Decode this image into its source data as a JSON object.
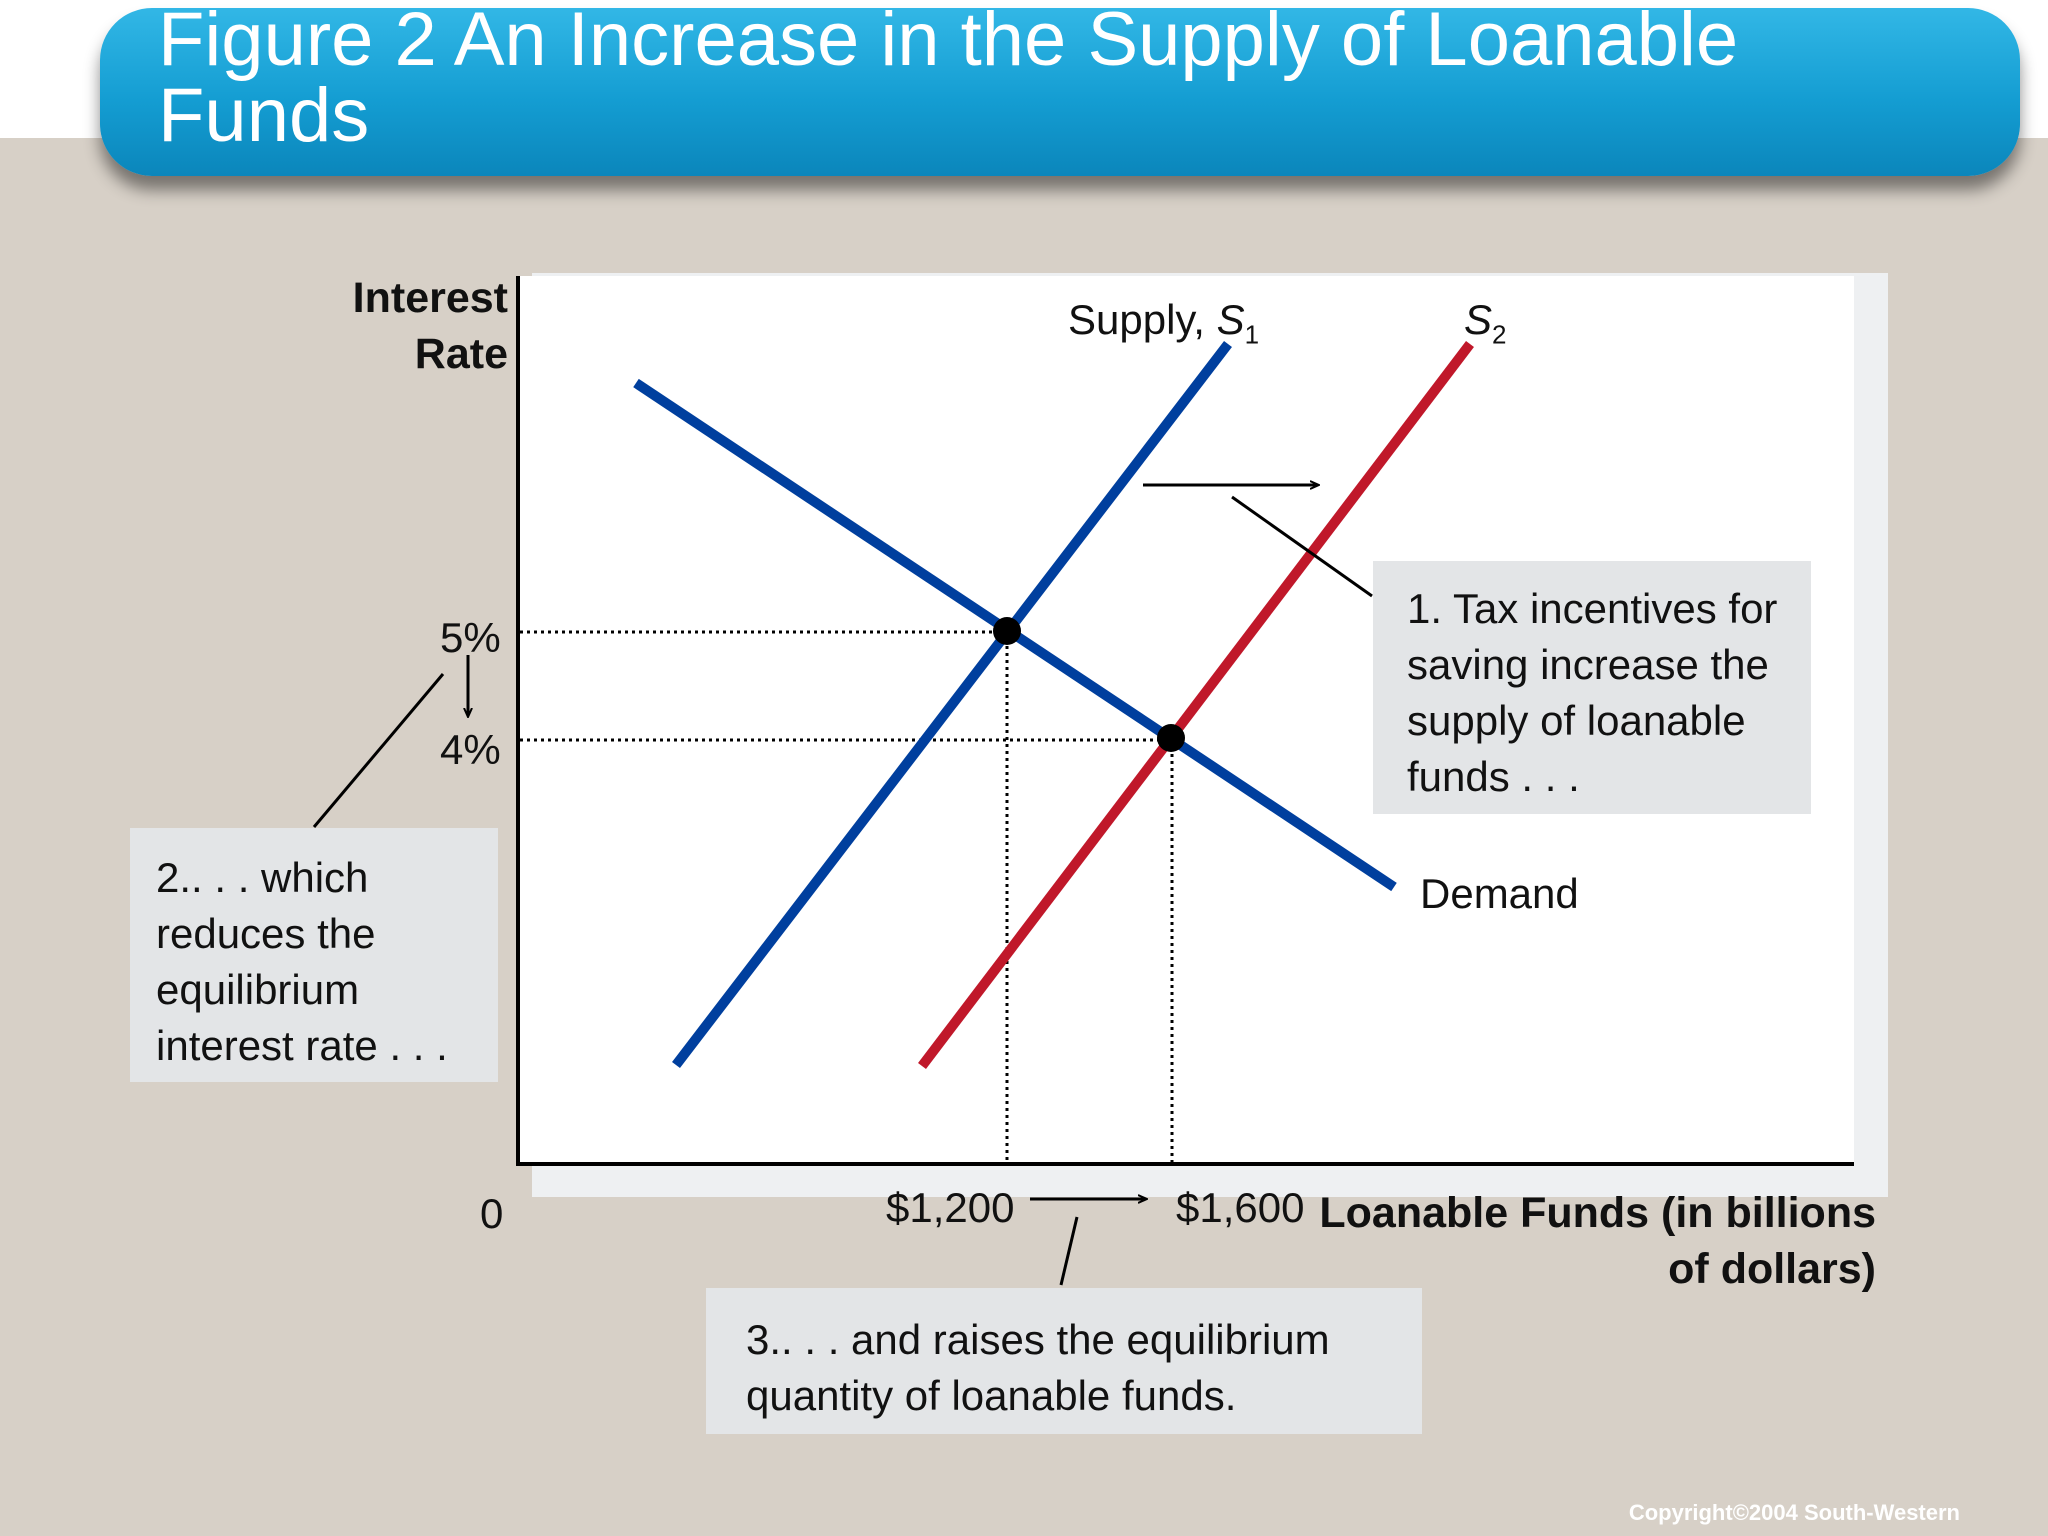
{
  "title": "Figure 2 An Increase in the Supply of Loanable Funds",
  "copyright": "Copyright©2004  South-Western",
  "chart_data": {
    "type": "line",
    "ylabel": "Interest Rate",
    "xlabel": "Loanable Funds (in billions of dollars)",
    "origin_label": "0",
    "x_tick_labels": [
      "$1,200",
      "$1,600"
    ],
    "y_tick_labels": [
      "5%",
      "4%"
    ],
    "series": [
      {
        "name": "Supply, S1",
        "label_main": "Supply, ",
        "label_sym": "S",
        "label_sub": "1",
        "color": "#003f9e"
      },
      {
        "name": "S2",
        "label_main": "",
        "label_sym": "S",
        "label_sub": "2",
        "color": "#c0182a"
      },
      {
        "name": "Demand",
        "label_main": "Demand",
        "color": "#003f9e"
      }
    ],
    "equilibria": [
      {
        "x": 1200,
        "y": 5
      },
      {
        "x": 1600,
        "y": 4
      }
    ],
    "annotations": [
      "1. Tax incentives for saving increase the supply of loanable funds . . .",
      "2.. . . which reduces the equilibrium interest rate . . .",
      "3.. . . and raises the equilibrium quantity of loanable funds."
    ]
  }
}
